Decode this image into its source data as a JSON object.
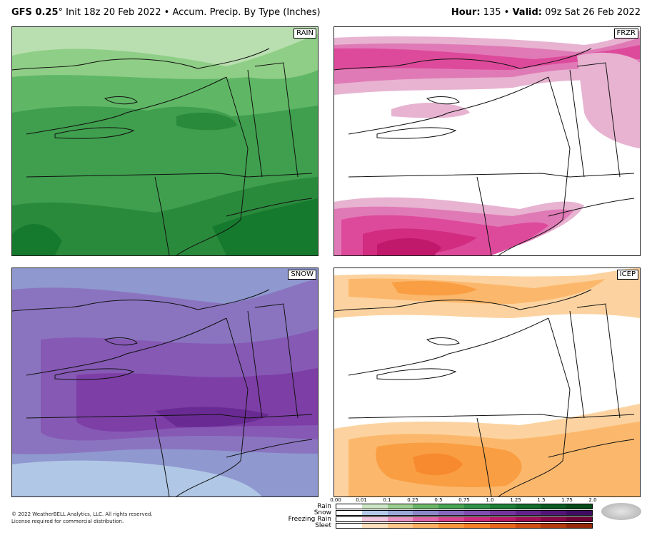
{
  "header": {
    "model": "GFS 0.25",
    "degree": "°",
    "init": "Init 18z 20 Feb 2022",
    "separator": "•",
    "product": "Accum. Precip. By Type (Inches)",
    "hour_label": "Hour:",
    "hour_value": "135",
    "valid_label": "Valid:",
    "valid_value": "09z Sat 26 Feb 2022"
  },
  "panels": [
    {
      "id": "rain",
      "label": "RAIN",
      "colors": [
        "#b9dfb0",
        "#8fce86",
        "#5fb765",
        "#3f9f4e",
        "#2a8a3c",
        "#157a2e"
      ]
    },
    {
      "id": "frzr",
      "label": "FRZR",
      "colors": [
        "#e7b3d1",
        "#e07ab6",
        "#de4a9b",
        "#d12c80",
        "#c0186a"
      ]
    },
    {
      "id": "snow",
      "label": "SNOW",
      "colors": [
        "#b0c8e6",
        "#8f98cf",
        "#8a74c0",
        "#8659b5",
        "#7d3ea6",
        "#6a2a94"
      ]
    },
    {
      "id": "icep",
      "label": "ICEP",
      "colors": [
        "#fcd3a0",
        "#fbb86c",
        "#f99e43",
        "#f78a2e"
      ]
    }
  ],
  "legend": {
    "ticks": [
      "0.00",
      "0.01",
      "0.1",
      "0.25",
      "0.5",
      "0.75",
      "1.0",
      "1.25",
      "1.5",
      "1.75",
      "2.0"
    ],
    "rows": [
      {
        "label": "Rain",
        "colors": [
          "#ffffff",
          "#cde6c5",
          "#9ccf90",
          "#6cb66a",
          "#4aa456",
          "#2f9246",
          "#1f7f38",
          "#136b2c",
          "#0b5a22",
          "#064a1a"
        ]
      },
      {
        "label": "Snow",
        "colors": [
          "#ffffff",
          "#b3c9e7",
          "#9aa7d7",
          "#8c86c8",
          "#8666bb",
          "#804cae",
          "#74349d",
          "#63228a",
          "#521577",
          "#400b62"
        ]
      },
      {
        "label": "Freezing Rain",
        "colors": [
          "#ffffff",
          "#f2c6de",
          "#e995c3",
          "#e064a8",
          "#d8438f",
          "#cc2a7b",
          "#b71a68",
          "#a00f56",
          "#870645",
          "#6e0236"
        ]
      },
      {
        "label": "Sleet",
        "colors": [
          "#ffffff",
          "#fde0bd",
          "#fcc88c",
          "#fbb063",
          "#f9963d",
          "#f67f26",
          "#e8651a",
          "#cf4e13",
          "#b43b0e",
          "#96290a"
        ]
      }
    ]
  },
  "copyright": {
    "line1": "© 2022 WeatherBELL Analytics, LLC. All rights reserved.",
    "line2": "License required for commercial distribution."
  }
}
